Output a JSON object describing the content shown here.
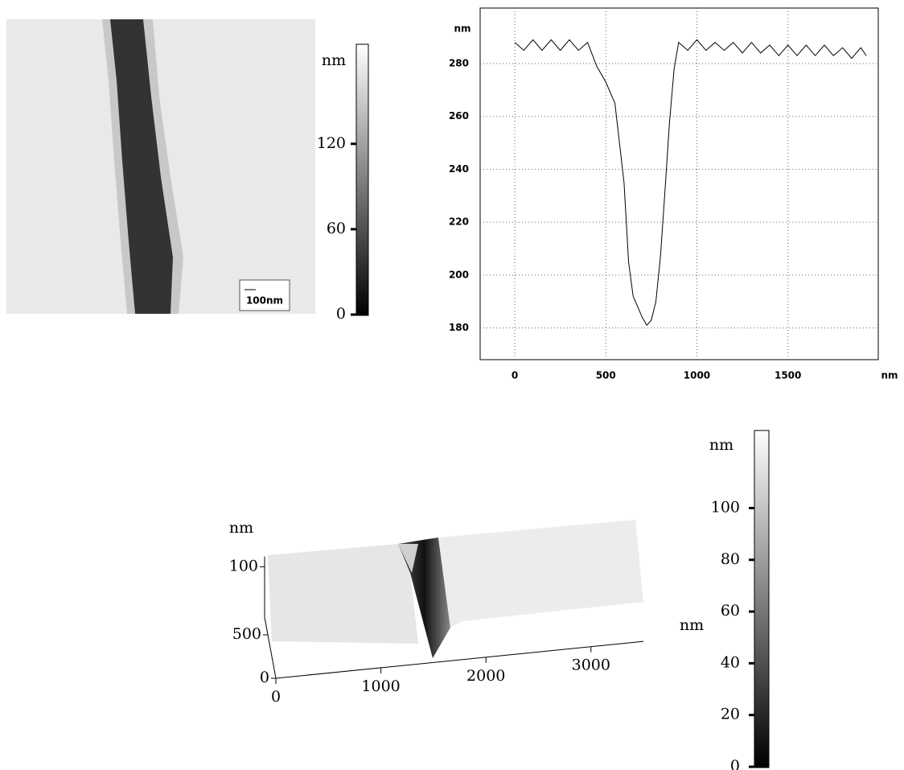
{
  "chart_data": [
    {
      "type": "image",
      "scale_bar": "100nm",
      "colorbar": {
        "label": "nm",
        "lim": [
          0,
          190
        ],
        "ticks": [
          0,
          60,
          120
        ]
      }
    },
    {
      "type": "line",
      "xlabel": "nm",
      "ylabel": "nm",
      "grid": true,
      "x": [
        0,
        50,
        100,
        150,
        200,
        250,
        300,
        350,
        400,
        450,
        500,
        550,
        600,
        625,
        650,
        700,
        725,
        750,
        775,
        800,
        825,
        850,
        875,
        900,
        950,
        1000,
        1050,
        1100,
        1150,
        1200,
        1250,
        1300,
        1350,
        1400,
        1450,
        1500,
        1550,
        1600,
        1650,
        1700,
        1750,
        1800,
        1850,
        1900,
        1930
      ],
      "series": [
        {
          "color": "#000000",
          "values": [
            288,
            285,
            289,
            285,
            289,
            285,
            289,
            285,
            288,
            279,
            273,
            265,
            235,
            205,
            192,
            184,
            181,
            183,
            190,
            207,
            232,
            258,
            278,
            288,
            285,
            289,
            285,
            288,
            285,
            288,
            284,
            288,
            284,
            287,
            283,
            287,
            283,
            287,
            283,
            287,
            283,
            286,
            282,
            286,
            283
          ]
        }
      ],
      "xlim": [
        -190,
        1996
      ],
      "ylim": [
        168,
        301
      ],
      "xticks": [
        0,
        500,
        1000,
        1500
      ],
      "yticks": [
        180,
        200,
        220,
        240,
        260,
        280
      ]
    },
    {
      "type": "surface3d",
      "xlabel": "nm",
      "zlabel": "nm",
      "xlim": [
        0,
        3500
      ],
      "xticks": [
        0,
        1000,
        2000,
        3000
      ],
      "ylim": [
        0,
        700
      ],
      "yticks": [
        0,
        500
      ],
      "zlim": [
        0,
        120
      ],
      "zticks": [
        100
      ],
      "colorbar": {
        "label": "nm",
        "lim": [
          0,
          130
        ],
        "ticks": [
          0,
          20,
          40,
          60,
          80,
          100
        ]
      }
    }
  ]
}
